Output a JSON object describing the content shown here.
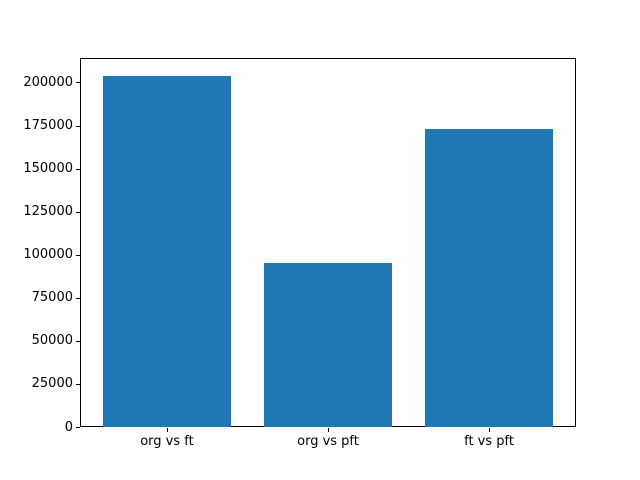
{
  "chart_data": {
    "type": "bar",
    "title": "",
    "xlabel": "",
    "ylabel": "",
    "categories": [
      "org vs ft",
      "org vs pft",
      "ft vs pft"
    ],
    "values": [
      204000,
      95000,
      173000
    ],
    "bar_color": "#1f77b4",
    "bar_width_fraction": 0.8,
    "ylim": [
      0,
      214200
    ],
    "yticks": [
      0,
      25000,
      50000,
      75000,
      100000,
      125000,
      150000,
      175000,
      200000
    ],
    "xlim": [
      -0.54,
      2.54
    ],
    "grid": false,
    "legend": false,
    "background_color": "#ffffff",
    "spine_color": "#000000"
  }
}
